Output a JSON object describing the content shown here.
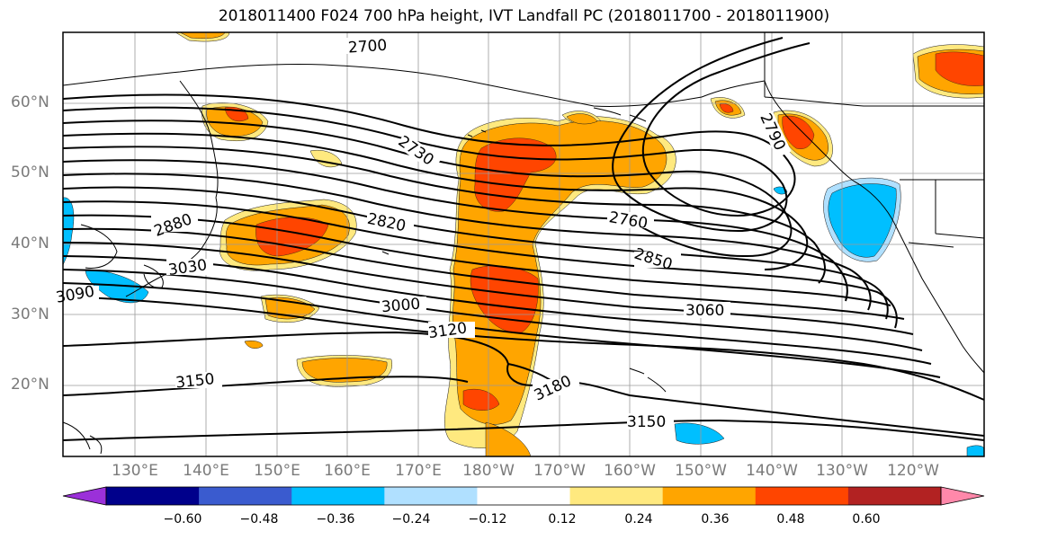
{
  "title": "2018011400 F024 700 hPa height, IVT Landfall PC (2018011700 - 2018011900)",
  "axes": {
    "lat_labels": [
      "60°N",
      "50°N",
      "40°N",
      "30°N",
      "20°N"
    ],
    "lon_labels": [
      "130°E",
      "140°E",
      "150°E",
      "160°E",
      "170°E",
      "180°W",
      "170°W",
      "160°W",
      "150°W",
      "140°W",
      "130°W",
      "120°W"
    ]
  },
  "contour_labels": [
    "2700",
    "2730",
    "2760",
    "2790",
    "2820",
    "2850",
    "2880",
    "3000",
    "3030",
    "3060",
    "3090",
    "3120",
    "3150",
    "3150",
    "3180"
  ],
  "colorbar": {
    "ticks": [
      "−0.60",
      "−0.48",
      "−0.36",
      "−0.24",
      "−0.12",
      "0.12",
      "0.24",
      "0.36",
      "0.48",
      "0.60"
    ],
    "colors": [
      "#9b30d9",
      "#00008b",
      "#3a5bcf",
      "#00bfff",
      "#b0e0ff",
      "#ffffff",
      "#ffe97f",
      "#ffa500",
      "#ff4500",
      "#b22222",
      "#ff88aa"
    ]
  },
  "shading_colors": {
    "light_orange": "#ffe97f",
    "orange": "#ffa500",
    "red_orange": "#ff4500",
    "dark_red": "#b22222",
    "light_blue": "#b0e0ff",
    "blue": "#00bfff"
  }
}
